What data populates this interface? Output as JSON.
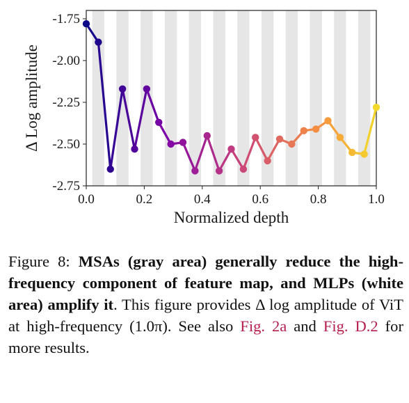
{
  "chart_data": {
    "type": "line",
    "xlabel": "Normalized depth",
    "ylabel": "Δ Log amplitude",
    "xlim": [
      0.0,
      1.0
    ],
    "ylim": [
      -2.75,
      -1.7
    ],
    "x_ticks": [
      "0.0",
      "0.2",
      "0.4",
      "0.6",
      "0.8",
      "1.0"
    ],
    "y_ticks": [
      "-1.75",
      "-2.00",
      "-2.25",
      "-2.50",
      "-2.75"
    ],
    "colormap": "plasma",
    "shading": {
      "gray_label": "MSAs (gray area)",
      "white_label": "MLPs (white area)",
      "color": "#e6e6e6"
    },
    "series": [
      {
        "x": [
          0.0,
          0.0417,
          0.0833,
          0.125,
          0.1667,
          0.2083,
          0.25,
          0.2917,
          0.3333,
          0.375,
          0.4167,
          0.4583,
          0.5,
          0.5417,
          0.5833,
          0.625,
          0.6667,
          0.7083,
          0.75,
          0.7917,
          0.8333,
          0.875,
          0.9167,
          0.9583,
          1.0
        ],
        "values": [
          -1.78,
          -1.89,
          -2.65,
          -2.17,
          -2.53,
          -2.17,
          -2.37,
          -2.5,
          -2.49,
          -2.66,
          -2.45,
          -2.66,
          -2.53,
          -2.65,
          -2.46,
          -2.6,
          -2.47,
          -2.5,
          -2.42,
          -2.41,
          -2.36,
          -2.46,
          -2.55,
          -2.56,
          -2.28
        ]
      }
    ]
  },
  "caption": {
    "prefix": "Figure 8: ",
    "bold": "MSAs (gray area) generally reduce the high-frequency component of feature map, and MLPs (white area) amplify it",
    "body": ". This figure provides Δ log amplitude of ViT at high-frequency (1.0π). See also ",
    "ref1": "Fig. 2a",
    "mid": " and ",
    "ref2": "Fig. D.2",
    "end": " for more results."
  }
}
